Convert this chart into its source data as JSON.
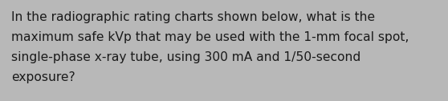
{
  "text_lines": [
    "In the radiographic rating charts shown below, what is the",
    "maximum safe kVp that may be used with the 1-mm focal spot,",
    "single-phase x-ray tube, using 300 mA and 1/50-second",
    "exposure?"
  ],
  "background_color": "#b8b8b8",
  "text_color": "#1a1a1a",
  "font_size": 11.2,
  "fig_width": 5.58,
  "fig_height": 1.26,
  "dpi": 100
}
